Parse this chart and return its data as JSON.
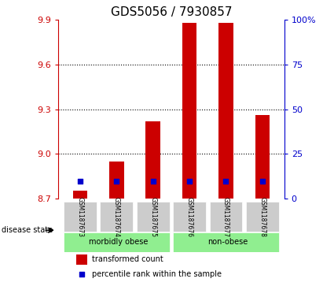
{
  "title": "GDS5056 / 7930857",
  "samples": [
    "GSM1187673",
    "GSM1187674",
    "GSM1187675",
    "GSM1187676",
    "GSM1187677",
    "GSM1187678"
  ],
  "bar_values": [
    8.75,
    8.95,
    9.22,
    9.88,
    9.88,
    9.26
  ],
  "bar_bottom": 8.7,
  "percentile_values": [
    9.53,
    9.54,
    9.59,
    9.63,
    9.64,
    9.59
  ],
  "bar_color": "#cc0000",
  "dot_color": "#0000cc",
  "left_ylim": [
    8.7,
    9.9
  ],
  "left_yticks": [
    8.7,
    9.0,
    9.3,
    9.6,
    9.9
  ],
  "right_ylim": [
    0,
    100
  ],
  "right_yticks": [
    0,
    25,
    50,
    75,
    100
  ],
  "right_yticklabels": [
    "0",
    "25",
    "50",
    "75",
    "100%"
  ],
  "groups": [
    {
      "label": "morbidly obese",
      "indices": [
        0,
        1,
        2
      ],
      "color": "#90ee90"
    },
    {
      "label": "non-obese",
      "indices": [
        3,
        4,
        5
      ],
      "color": "#90ee90"
    }
  ],
  "disease_state_label": "disease state",
  "legend_bar_label": "transformed count",
  "legend_dot_label": "percentile rank within the sample",
  "title_fontsize": 11,
  "axis_label_color_left": "#cc0000",
  "axis_label_color_right": "#0000cc",
  "background_color": "#ffffff",
  "plot_bg_color": "#ffffff",
  "tick_label_area_color": "#cccccc",
  "group_box_color": "#90ee90"
}
